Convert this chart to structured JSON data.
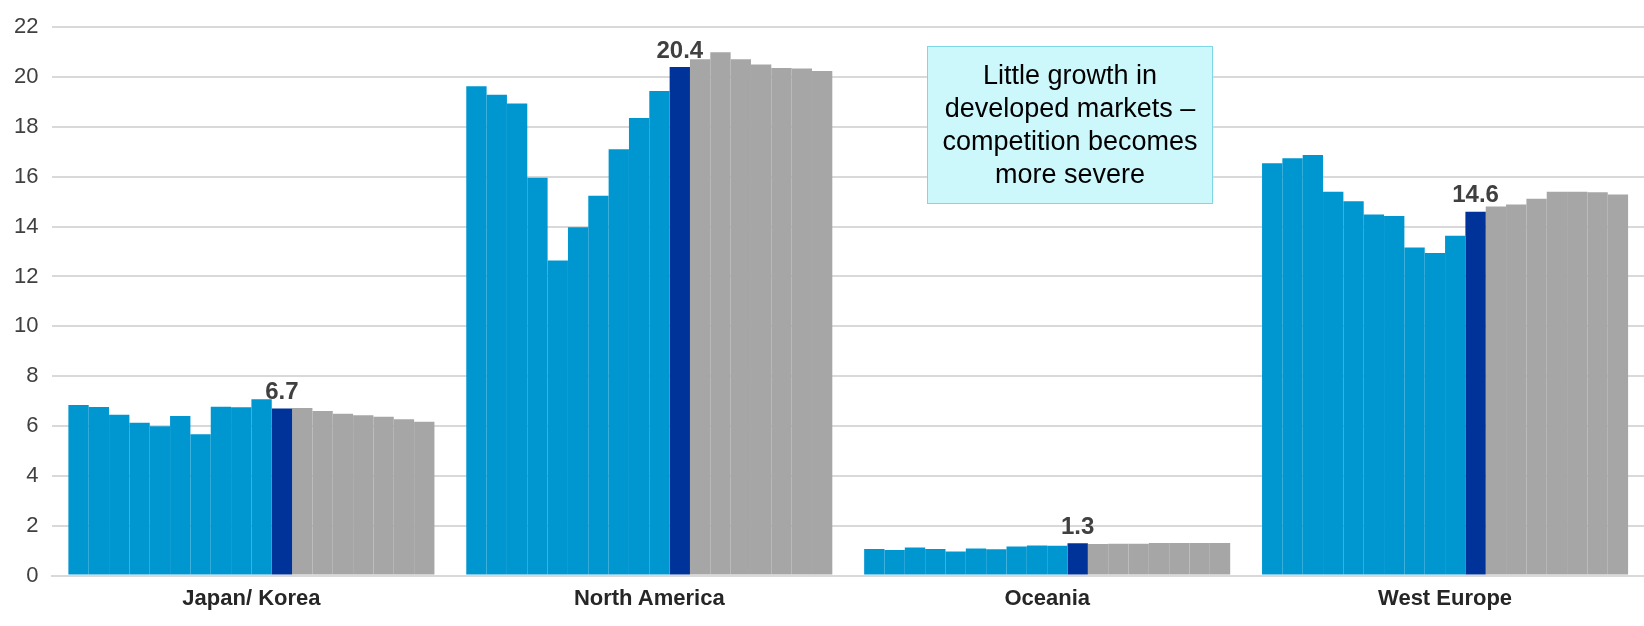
{
  "chart_data": {
    "type": "bar",
    "categories": [
      "Japan/ Korea",
      "North America",
      "Oceania",
      "West Europe"
    ],
    "series": [
      {
        "color": "#0097d1",
        "values": [
          6.84,
          19.63,
          1.07,
          16.54
        ]
      },
      {
        "color": "#0097d1",
        "values": [
          6.76,
          19.29,
          1.03,
          16.74
        ]
      },
      {
        "color": "#0097d1",
        "values": [
          6.45,
          18.94,
          1.13,
          16.87
        ]
      },
      {
        "color": "#0097d1",
        "values": [
          6.13,
          15.96,
          1.07,
          15.4
        ]
      },
      {
        "color": "#0097d1",
        "values": [
          5.99,
          12.64,
          0.97,
          15.02
        ]
      },
      {
        "color": "#0097d1",
        "values": [
          6.4,
          13.97,
          1.09,
          14.49
        ]
      },
      {
        "color": "#0097d1",
        "values": [
          5.67,
          15.24,
          1.06,
          14.43
        ]
      },
      {
        "color": "#0097d1",
        "values": [
          6.77,
          17.1,
          1.17,
          13.16
        ]
      },
      {
        "color": "#0097d1",
        "values": [
          6.75,
          18.36,
          1.21,
          12.94
        ]
      },
      {
        "color": "#0097d1",
        "values": [
          7.07,
          19.44,
          1.2,
          13.63
        ]
      },
      {
        "color": "#003399",
        "values": [
          6.7,
          20.4,
          1.3,
          14.6
        ],
        "value_labels": [
          "6.7",
          "20.4",
          "1.3",
          "14.6"
        ]
      },
      {
        "color": "#a6a6a6",
        "values": [
          6.72,
          20.71,
          1.27,
          14.81
        ]
      },
      {
        "color": "#a6a6a6",
        "values": [
          6.6,
          21.0,
          1.28,
          14.89
        ]
      },
      {
        "color": "#a6a6a6",
        "values": [
          6.49,
          20.71,
          1.28,
          15.12
        ]
      },
      {
        "color": "#a6a6a6",
        "values": [
          6.43,
          20.5,
          1.31,
          15.4
        ]
      },
      {
        "color": "#a6a6a6",
        "values": [
          6.37,
          20.36,
          1.31,
          15.4
        ]
      },
      {
        "color": "#a6a6a6",
        "values": [
          6.27,
          20.34,
          1.31,
          15.38
        ]
      },
      {
        "color": "#a6a6a6",
        "values": [
          6.17,
          20.24,
          1.31,
          15.29
        ]
      }
    ],
    "ylim": [
      0,
      22
    ],
    "yticks": [
      0,
      2,
      4,
      6,
      8,
      10,
      12,
      14,
      16,
      18,
      20,
      22
    ],
    "grid": "y",
    "legend": false,
    "annotations": [
      "Little growth in developed markets – competition becomes more severe"
    ]
  }
}
